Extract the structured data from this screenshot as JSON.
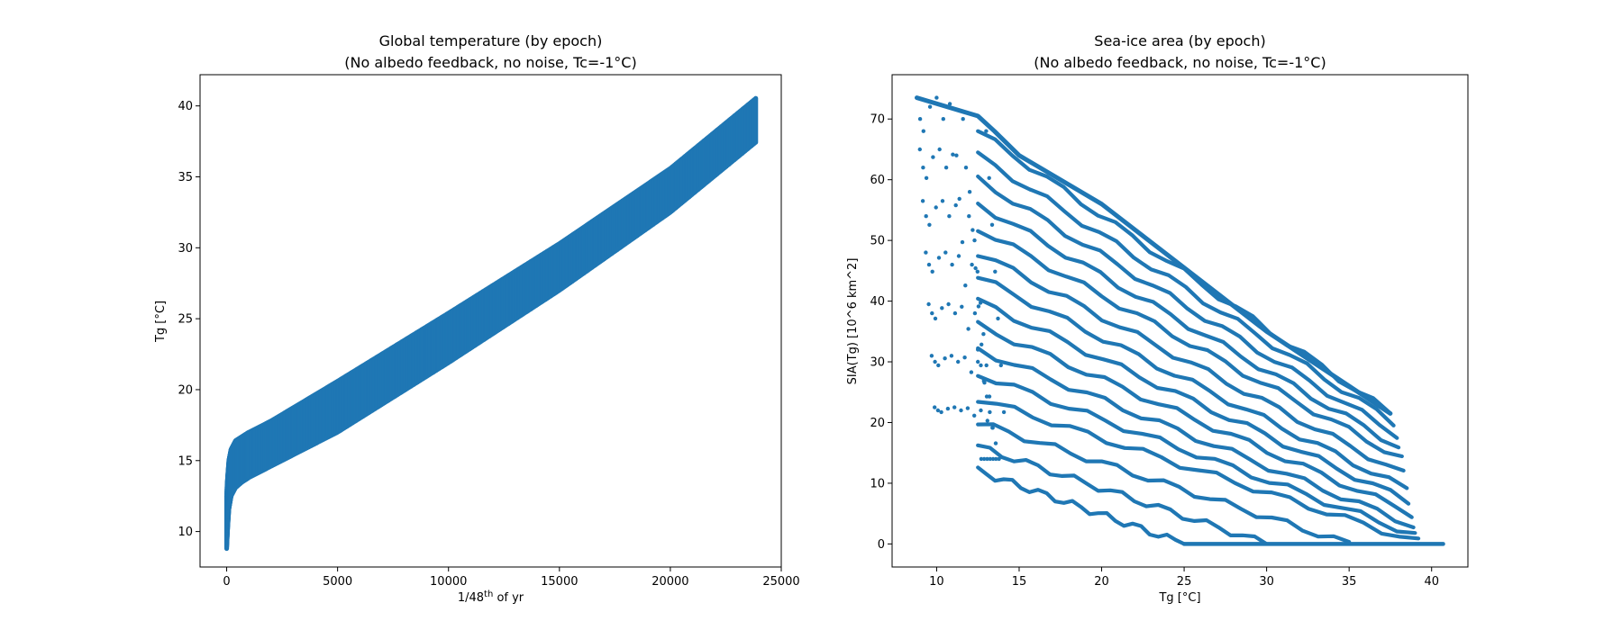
{
  "colors": {
    "series": "#1f77b4",
    "axes": "#000000",
    "background": "#ffffff"
  },
  "chart_data": [
    {
      "type": "scatter",
      "title_line1": "Global temperature (by epoch)",
      "title_line2": "(No albedo feedback, no noise, Tc=-1",
      "title_unit": "°C)",
      "xlabel_pre": "1/48",
      "xlabel_sup": "th",
      "xlabel_post": " of yr",
      "ylabel": "Tg [°C]",
      "xlim": [
        -1200,
        25000
      ],
      "ylim": [
        7.5,
        42.2
      ],
      "xticks": [
        0,
        5000,
        10000,
        15000,
        20000,
        25000
      ],
      "xtick_labels": [
        "0",
        "5000",
        "10000",
        "15000",
        "20000",
        "25000"
      ],
      "yticks": [
        10,
        15,
        20,
        25,
        30,
        35,
        40
      ],
      "ytick_labels": [
        "10",
        "15",
        "20",
        "25",
        "30",
        "35",
        "40"
      ],
      "grid": false,
      "series": [
        {
          "description_points": {
            "x": [
              0,
              20,
              50,
              100,
              200,
              400,
              700,
              1000,
              2000,
              5000,
              10000,
              15000,
              20000,
              23900
            ],
            "y_upper": [
              12.5,
              13.3,
              14.0,
              15.0,
              15.8,
              16.4,
              16.7,
              17.0,
              17.8,
              20.6,
              25.4,
              30.3,
              35.6,
              40.6
            ],
            "y_lower": [
              8.8,
              9.5,
              10.4,
              11.6,
              12.5,
              13.1,
              13.5,
              13.8,
              14.6,
              17.0,
              21.9,
              27.0,
              32.5,
              37.5
            ]
          }
        }
      ]
    },
    {
      "type": "scatter",
      "title_line1": "Sea-ice area (by epoch)",
      "title_line2": "(No albedo feedback, no noise, Tc=-1",
      "title_unit": "°C)",
      "xlabel": "Tg [°C]",
      "ylabel": "SIA(Tg) [10^6 km^2]",
      "xlim": [
        7.3,
        42.2
      ],
      "ylim": [
        -3.8,
        77.3
      ],
      "xticks": [
        10,
        15,
        20,
        25,
        30,
        35,
        40
      ],
      "xtick_labels": [
        "10",
        "15",
        "20",
        "25",
        "30",
        "35",
        "40"
      ],
      "yticks": [
        0,
        10,
        20,
        30,
        40,
        50,
        60,
        70
      ],
      "ytick_labels": [
        "0",
        "10",
        "20",
        "30",
        "40",
        "50",
        "60",
        "70"
      ],
      "grid": false,
      "upper_envelope": {
        "x": [
          8.8,
          12.5,
          13.5,
          15,
          20,
          25,
          30,
          35,
          37.5
        ],
        "y": [
          73.5,
          70.5,
          68,
          64,
          56,
          45.5,
          35,
          26,
          21.5
        ]
      },
      "start_points": {
        "x": [
          8.8,
          9.0,
          9.2,
          9.6,
          10.0,
          10.4,
          10.8,
          11.2,
          11.6,
          12.0,
          12.3,
          12.5,
          12.7,
          13.0
        ],
        "y": [
          73.5,
          70,
          68,
          72,
          73.5,
          70,
          72.5,
          64,
          70,
          58,
          50,
          32,
          14,
          68
        ]
      },
      "lines": [
        {
          "x0": 12.5,
          "y0": 68,
          "x1": 37.5,
          "y1": 21.5
        },
        {
          "x0": 12.5,
          "y0": 64,
          "x1": 37.7,
          "y1": 20
        },
        {
          "x0": 12.5,
          "y0": 60,
          "x1": 37.9,
          "y1": 18
        },
        {
          "x0": 12.5,
          "y0": 56,
          "x1": 38.0,
          "y1": 16
        },
        {
          "x0": 12.5,
          "y0": 52,
          "x1": 38.2,
          "y1": 14
        },
        {
          "x0": 12.5,
          "y0": 48,
          "x1": 38.3,
          "y1": 11.5
        },
        {
          "x0": 12.5,
          "y0": 44,
          "x1": 38.5,
          "y1": 9
        },
        {
          "x0": 12.5,
          "y0": 40,
          "x1": 38.6,
          "y1": 7
        },
        {
          "x0": 12.5,
          "y0": 36,
          "x1": 38.8,
          "y1": 5
        },
        {
          "x0": 12.5,
          "y0": 32,
          "x1": 38.9,
          "y1": 3
        },
        {
          "x0": 12.5,
          "y0": 28,
          "x1": 39.0,
          "y1": 1.5
        },
        {
          "x0": 12.5,
          "y0": 24,
          "x1": 39.2,
          "y1": 0.3
        },
        {
          "x0": 12.5,
          "y0": 20,
          "x1": 35.0,
          "y1": 0
        },
        {
          "x0": 12.5,
          "y0": 16,
          "x1": 30.0,
          "y1": 0
        },
        {
          "x0": 12.5,
          "y0": 12,
          "x1": 25.0,
          "y1": 0
        }
      ],
      "zero_band": {
        "x": [
          25,
          40.7
        ],
        "y": 0
      }
    }
  ]
}
